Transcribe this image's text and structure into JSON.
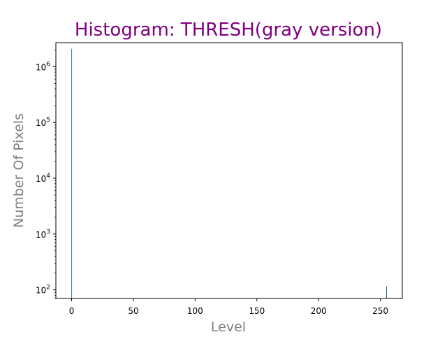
{
  "chart_data": {
    "type": "bar",
    "title": "Histogram: THRESH(gray version)",
    "xlabel": "Level",
    "ylabel": "Number Of Pixels",
    "yscale": "log",
    "xlim": [
      -12.75,
      267.75
    ],
    "ylim": [
      70,
      2700000
    ],
    "x_ticks": [
      0,
      50,
      100,
      150,
      200,
      250
    ],
    "y_ticks": [
      {
        "value": 100,
        "base": "10",
        "exp": "2"
      },
      {
        "value": 1000,
        "base": "10",
        "exp": "3"
      },
      {
        "value": 10000,
        "base": "10",
        "exp": "4"
      },
      {
        "value": 100000,
        "base": "10",
        "exp": "5"
      },
      {
        "value": 1000000,
        "base": "10",
        "exp": "6"
      }
    ],
    "bars": [
      {
        "level": 0,
        "count": 2100000
      },
      {
        "level": 255,
        "count": 115
      }
    ],
    "bin_width": 0.5,
    "bar_color": "#1f77b4",
    "title_color": "#800080",
    "label_color": "#808080",
    "grid": false
  }
}
